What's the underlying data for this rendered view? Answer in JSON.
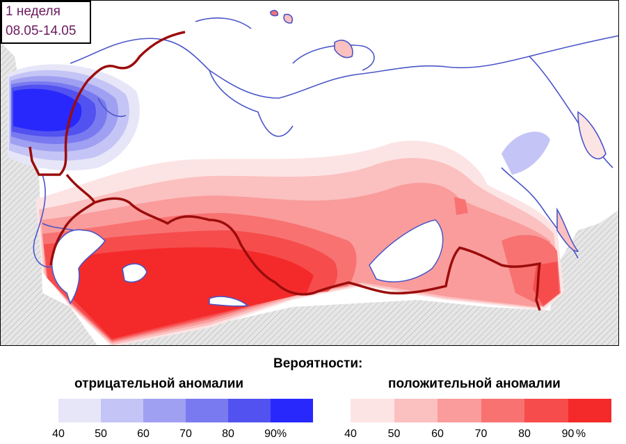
{
  "period": {
    "week_label": "1 неделя",
    "dates": "08.05-14.05"
  },
  "legend": {
    "title": "Вероятности:",
    "negative": {
      "label": "отрицательной аномалии",
      "ticks": [
        "40",
        "50",
        "60",
        "70",
        "80",
        "90"
      ],
      "colors": [
        "#e6e6f8",
        "#c4c4f6",
        "#a0a0f2",
        "#7a7af0",
        "#5252f0",
        "#2828fc"
      ]
    },
    "positive": {
      "label": "положительной аномалии",
      "ticks": [
        "40",
        "50",
        "60",
        "70",
        "80",
        "90"
      ],
      "colors": [
        "#fde4e4",
        "#fbc0c0",
        "#fa9c9c",
        "#f87272",
        "#f64c4c",
        "#f42a2a"
      ]
    },
    "unit": "%"
  },
  "map_colors": {
    "coastline": "#4a55c8",
    "border": "#9b0c0c",
    "hatch_bg": "#e6e6e6",
    "hatch_line": "#b4b4b4"
  }
}
